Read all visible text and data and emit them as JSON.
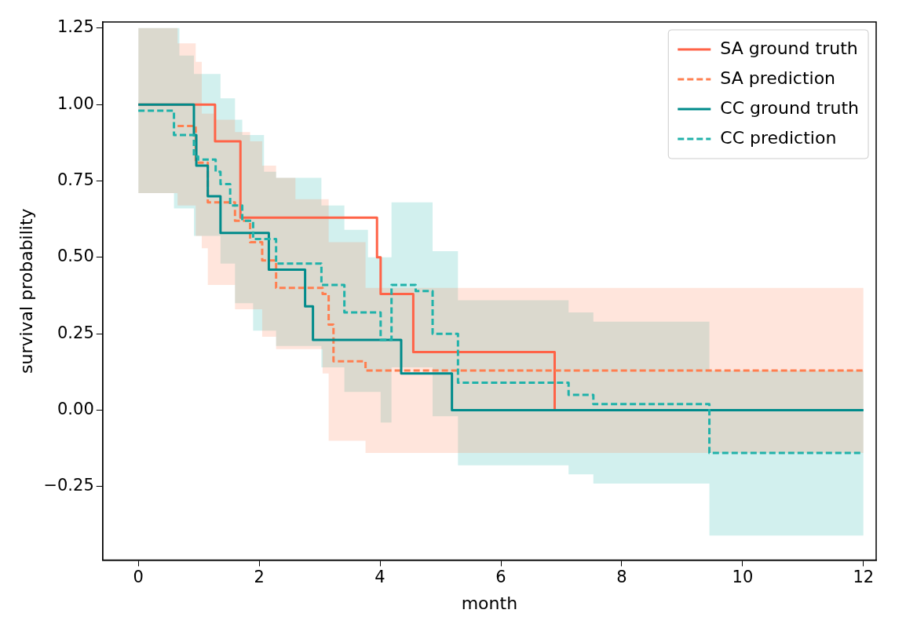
{
  "chart_data": {
    "type": "step",
    "xlabel": "month",
    "ylabel": "survival probability",
    "xlim": [
      -0.59,
      12.21
    ],
    "ylim": [
      -0.49,
      1.27
    ],
    "xticks": [
      0,
      2,
      4,
      6,
      8,
      10,
      12
    ],
    "yticks": [
      {
        "value": -0.25,
        "label": "−0.25"
      },
      {
        "value": 0,
        "label": "0.00"
      },
      {
        "value": 0.25,
        "label": "0.25"
      },
      {
        "value": 0.5,
        "label": "0.50"
      },
      {
        "value": 0.75,
        "label": "0.75"
      },
      {
        "value": 1,
        "label": "1.00"
      },
      {
        "value": 1.25,
        "label": "1.25"
      }
    ],
    "grid": false,
    "legend": "top right",
    "marker": "none",
    "series": [
      {
        "name": "SA ground truth",
        "color": "#ff6347",
        "line_style": "solid",
        "x": [
          0,
          1.27,
          1.69,
          3.95,
          4.01,
          4.55,
          6.89
        ],
        "values": [
          1,
          0.88,
          0.63,
          0.5,
          0.38,
          0.19,
          0
        ]
      },
      {
        "name": "SA prediction",
        "color": "#ff7f50",
        "line_style": "dashed",
        "x": [
          0,
          0.65,
          0.95,
          1.05,
          1.15,
          1.25,
          1.6,
          1.85,
          2.05,
          2.28,
          2.6,
          3.05,
          3.15,
          3.23,
          3.76,
          12
        ],
        "values": [
          null,
          0.93,
          0.81,
          0.81,
          0.68,
          0.68,
          0.62,
          0.55,
          0.49,
          0.4,
          0.4,
          0.38,
          0.28,
          0.16,
          0.13,
          0.13
        ],
        "upper": [
          1.25,
          1.2,
          1.14,
          0.97,
          0.97,
          0.95,
          0.91,
          0.88,
          0.8,
          0.76,
          0.69,
          0.69,
          0.55,
          0.55,
          0.4,
          0.4
        ],
        "lower": [
          0.71,
          0.67,
          0.57,
          0.53,
          0.41,
          0.41,
          0.33,
          0.33,
          0.24,
          0.2,
          0.2,
          0.12,
          -0.1,
          -0.1,
          -0.14,
          -0.14
        ]
      },
      {
        "name": "CC ground truth",
        "color": "#008b8b",
        "line_style": "solid",
        "x": [
          0,
          0.92,
          0.96,
          1.15,
          1.36,
          2.16,
          2.76,
          2.89,
          4.35,
          5.19,
          12
        ],
        "values": [
          1,
          0.9,
          0.8,
          0.7,
          0.58,
          0.46,
          0.34,
          0.23,
          0.12,
          0,
          0
        ]
      },
      {
        "name": "CC prediction",
        "color": "#20b2aa",
        "line_style": "dashed",
        "x": [
          0,
          0.59,
          0.68,
          0.92,
          0.99,
          1.28,
          1.36,
          1.52,
          1.6,
          1.72,
          1.9,
          2.08,
          2.28,
          3.03,
          3.41,
          3.8,
          4.01,
          4.19,
          4.59,
          4.87,
          5.29,
          7.12,
          7.53,
          9.45,
          12
        ],
        "values": [
          0.98,
          0.9,
          0.9,
          0.83,
          0.82,
          0.78,
          0.74,
          0.67,
          0.67,
          0.62,
          0.56,
          0.56,
          0.48,
          0.41,
          0.32,
          0.32,
          0.23,
          0.41,
          0.39,
          0.25,
          0.09,
          0.05,
          0.02,
          -0.14,
          -0.14
        ],
        "upper": [
          1.25,
          1.25,
          1.16,
          1.1,
          1.1,
          1.1,
          1.02,
          1.02,
          0.95,
          0.9,
          0.9,
          0.78,
          0.76,
          0.67,
          0.59,
          0.5,
          0.5,
          0.68,
          0.68,
          0.52,
          0.36,
          0.32,
          0.29,
          0.13,
          0.13
        ],
        "lower": [
          0.71,
          0.66,
          0.66,
          0.57,
          0.57,
          0.57,
          0.48,
          0.48,
          0.35,
          0.35,
          0.26,
          0.26,
          0.21,
          0.14,
          0.06,
          0.06,
          -0.04,
          0.14,
          0.14,
          -0.02,
          -0.18,
          -0.21,
          -0.24,
          -0.41,
          -0.41
        ]
      }
    ]
  }
}
